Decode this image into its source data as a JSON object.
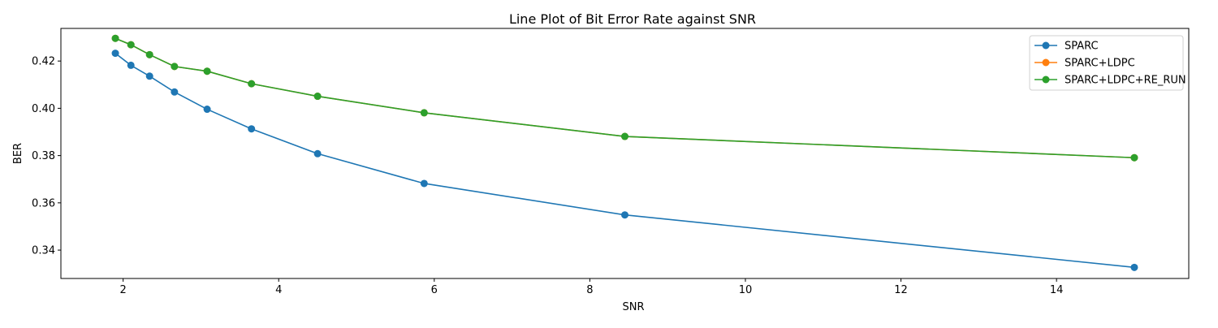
{
  "chart_data": {
    "type": "line",
    "title": "Line Plot of Bit Error Rate against SNR",
    "xlabel": "SNR",
    "ylabel": "BER",
    "xlim": [
      1.2,
      15.7
    ],
    "ylim": [
      0.328,
      0.4338
    ],
    "xticks": [
      2,
      4,
      6,
      8,
      10,
      12,
      14
    ],
    "yticks": [
      0.34,
      0.36,
      0.38,
      0.4,
      0.42
    ],
    "ytick_labels": [
      "0.34",
      "0.36",
      "0.38",
      "0.40",
      "0.42"
    ],
    "grid": false,
    "legend_position": "top-right",
    "x": [
      1.9,
      2.1,
      2.34,
      2.66,
      3.08,
      3.65,
      4.5,
      5.87,
      8.45,
      15.0
    ],
    "series": [
      {
        "name": "SPARC",
        "color": "#1f77b4",
        "values": [
          0.4233,
          0.4182,
          0.4136,
          0.4069,
          0.3996,
          0.3913,
          0.3808,
          0.3682,
          0.3549,
          0.3327
        ]
      },
      {
        "name": "SPARC+LDPC",
        "color": "#ff7f0e",
        "values": [
          0.4296,
          0.4269,
          0.4227,
          0.4177,
          0.4157,
          0.4104,
          0.4051,
          0.3981,
          0.3881,
          0.3791
        ]
      },
      {
        "name": "SPARC+LDPC+RE_RUN",
        "color": "#2ca02c",
        "values": [
          0.4296,
          0.4269,
          0.4227,
          0.4177,
          0.4157,
          0.4104,
          0.4051,
          0.3981,
          0.3881,
          0.3791
        ]
      }
    ]
  }
}
